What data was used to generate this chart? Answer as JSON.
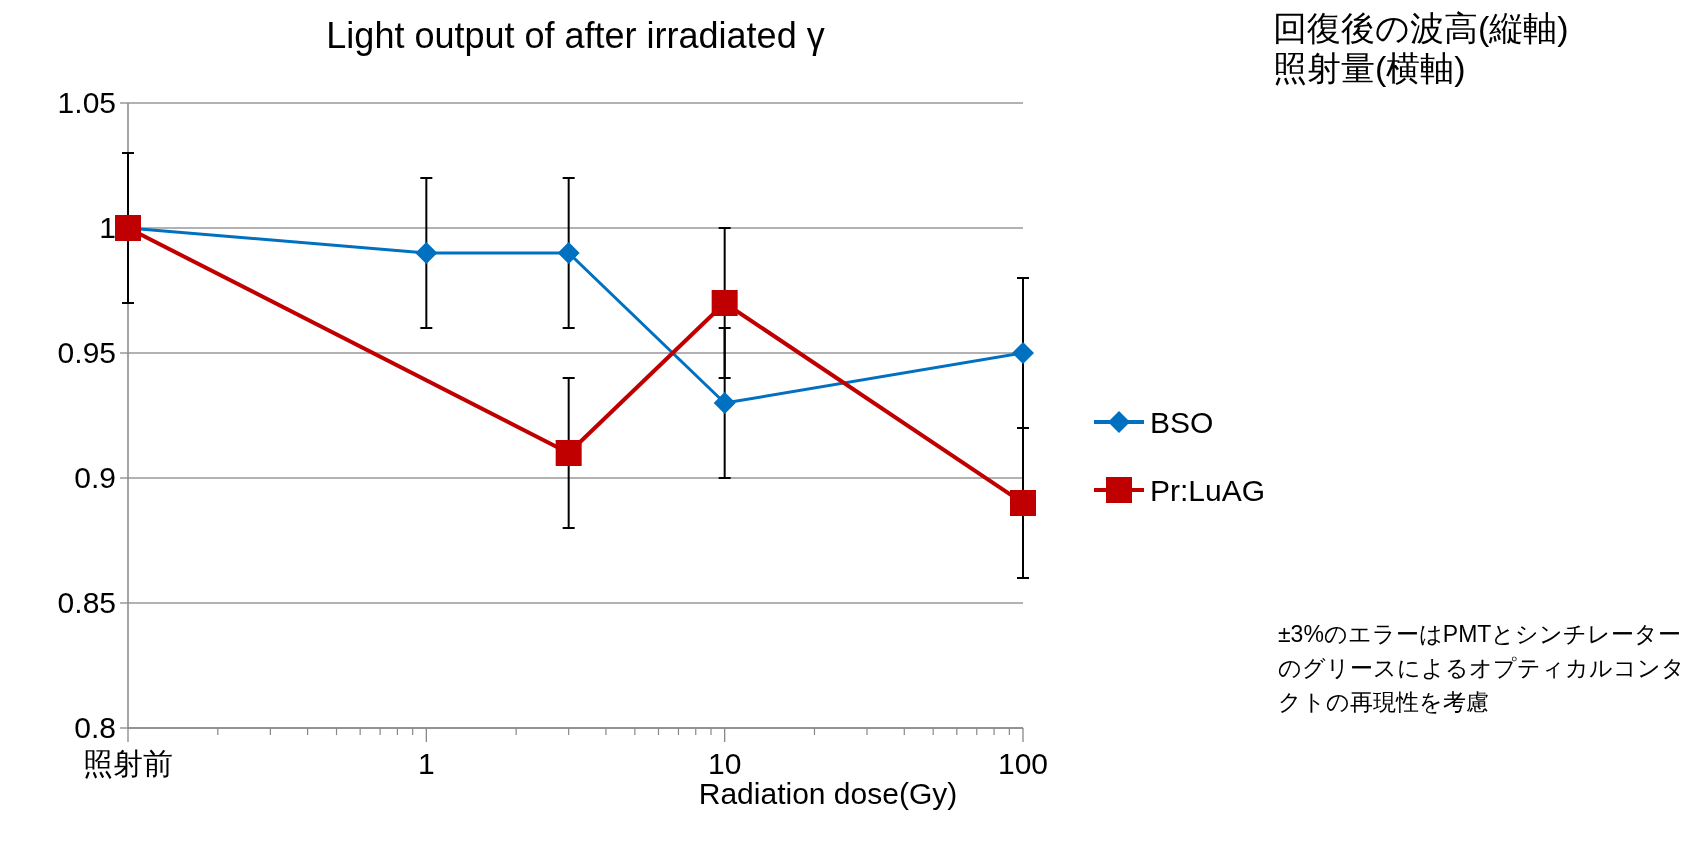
{
  "chart_data": {
    "type": "line",
    "title": "Light output of after irradiated γ",
    "xlabel": "Radiation dose(Gy)",
    "log": "x",
    "xlim": [
      0.1,
      100
    ],
    "xticks": [
      {
        "value": 0.1,
        "label": "照射前"
      },
      1,
      10,
      100
    ],
    "ylim": [
      0.8,
      1.05
    ],
    "yticks": [
      {
        "value": 0.8,
        "label": "0.8"
      },
      0.85,
      {
        "value": 0.9,
        "label": "0.9"
      },
      0.95,
      {
        "value": 1,
        "label": "1"
      },
      1.05
    ],
    "grid": "y",
    "legend": "right",
    "line_style": "solid",
    "series": [
      {
        "name": "BSO",
        "color": "#0070c0",
        "marker": "diamond",
        "x": [
          0.1,
          1,
          3,
          10,
          100
        ],
        "values": [
          1,
          0.99,
          0.99,
          0.93,
          0.95
        ],
        "errors": [
          0.03,
          0.03,
          0.03,
          0.03,
          0.03
        ]
      },
      {
        "name": "Pr:LuAG",
        "color": "#c00000",
        "marker": "square",
        "x": [
          0.1,
          3,
          10,
          100
        ],
        "values": [
          1,
          0.91,
          0.97,
          0.89
        ],
        "errors": [
          0.03,
          0.03,
          0.03,
          0.03
        ]
      }
    ],
    "annotations": [
      "回復後の波高(縦軸)",
      "照射量(横軸)",
      "±3%のエラーはPMTとシンチレーターのグリースによるオプティカルコンタクトの再現性を考慮"
    ]
  }
}
